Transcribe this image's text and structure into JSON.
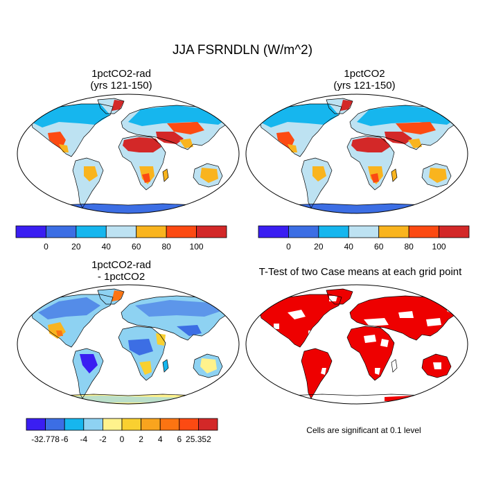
{
  "figure": {
    "title": "JJA FSRNDLN (W/m^2)"
  },
  "panels": [
    {
      "id": "top-left",
      "title_line1": "1pctCO2-rad",
      "title_line2": "(yrs 121-150)"
    },
    {
      "id": "top-right",
      "title_line1": "1pctCO2",
      "title_line2": "(yrs 121-150)"
    },
    {
      "id": "bottom-left",
      "title_line1": "1pctCO2-rad",
      "title_line2": "- 1pctCO2"
    },
    {
      "id": "bottom-right",
      "title_line1": "T-Test of two Case means at each grid point",
      "title_line2": ""
    }
  ],
  "colorbars": {
    "absolute": {
      "colors": [
        "#3a1ef2",
        "#3c6ee4",
        "#16b6ee",
        "#bde2f2",
        "#f9b41e",
        "#fc4a12",
        "#d32828"
      ],
      "labels": [
        "0",
        "20",
        "40",
        "60",
        "80",
        "100"
      ]
    },
    "difference": {
      "colors": [
        "#3a1ef2",
        "#3c6ee4",
        "#16b6ee",
        "#8ed2f2",
        "#fff28c",
        "#f9d030",
        "#f9a41e",
        "#fc7412",
        "#fc4a12",
        "#d32828"
      ],
      "labels": [
        "-32.778",
        "-6",
        "-4",
        "-2",
        "0",
        "2",
        "4",
        "6",
        "25.352"
      ]
    }
  },
  "significance_note": "Cells are significant at 0.1 level",
  "significance_color": "#ee0000"
}
